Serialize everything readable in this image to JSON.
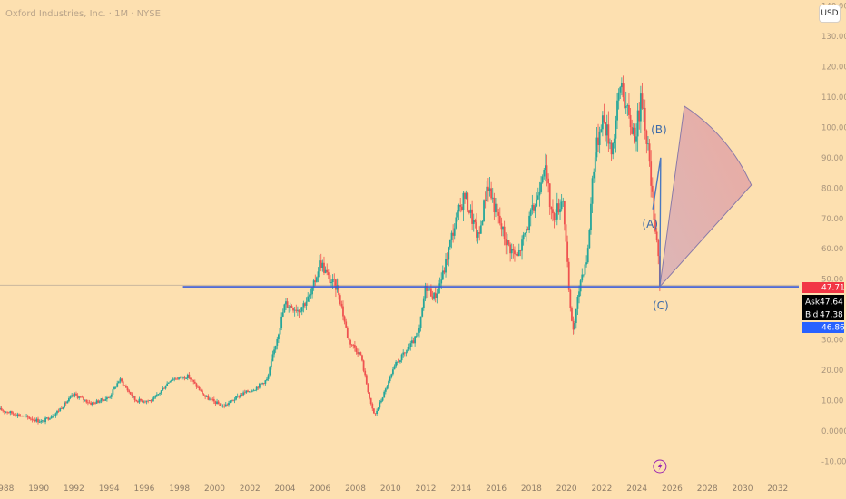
{
  "header": {
    "title": "Oxford Industries, Inc. · 1M · NYSE",
    "currency": "USD"
  },
  "colors": {
    "background": "#fde0b0",
    "up": "#26a69a",
    "down": "#ef5350",
    "support_line": "#3a5bd9",
    "fan_fill": "#e8a5a0",
    "fan_stroke": "#8a7aa8",
    "wave_label": "#3d6aa8"
  },
  "price_tags": {
    "last": {
      "value": "47.71",
      "color": "#f23645"
    },
    "ask": {
      "label": "Ask",
      "value": "47.64"
    },
    "bid": {
      "label": "Bid",
      "value": "47.38"
    },
    "low": {
      "value": "46.86",
      "color": "#2962ff"
    }
  },
  "icons": {
    "events": "lightning-icon"
  },
  "chart_data": {
    "type": "candlestick",
    "xlim": [
      1987.8,
      2033.2
    ],
    "ylim": [
      -13.5,
      142
    ],
    "y_ticks": [
      -10,
      0,
      10,
      20,
      30,
      40,
      50,
      60,
      70,
      80,
      90,
      100,
      110,
      120,
      130,
      140
    ],
    "y_tick_labels": [
      "-10.00",
      "0.0000",
      "10.00",
      "20.00",
      "30.00",
      "40.00",
      "50.00",
      "60.00",
      "70.00",
      "80.00",
      "90.00",
      "100.00",
      "110.00",
      "120.00",
      "130.00",
      "140.00"
    ],
    "x_ticks": [
      1988,
      1990,
      1992,
      1994,
      1996,
      1998,
      2000,
      2002,
      2004,
      2006,
      2008,
      2010,
      2012,
      2014,
      2016,
      2018,
      2020,
      2022,
      2024,
      2026,
      2028,
      2030,
      2032
    ],
    "x_tick_labels": [
      "1988",
      "1990",
      "1992",
      "1994",
      "1996",
      "1998",
      "2000",
      "2002",
      "2004",
      "2006",
      "2008",
      "2010",
      "2012",
      "2014",
      "2016",
      "2018",
      "2020",
      "2022",
      "2024",
      "2026",
      "2028",
      "2030",
      "2032"
    ],
    "price_path": [
      [
        1987.8,
        7
      ],
      [
        1989,
        5
      ],
      [
        1990.2,
        3
      ],
      [
        1991,
        6
      ],
      [
        1992,
        12
      ],
      [
        1993,
        9
      ],
      [
        1994,
        11
      ],
      [
        1994.6,
        17
      ],
      [
        1995.5,
        10
      ],
      [
        1996.5,
        10
      ],
      [
        1997.5,
        17
      ],
      [
        1998.5,
        18
      ],
      [
        1999.5,
        11
      ],
      [
        2000.5,
        8
      ],
      [
        2001.5,
        12
      ],
      [
        2002.3,
        14
      ],
      [
        2003,
        17
      ],
      [
        2004,
        42
      ],
      [
        2004.8,
        40
      ],
      [
        2005.5,
        45
      ],
      [
        2006,
        56
      ],
      [
        2006.5,
        50
      ],
      [
        2007,
        47
      ],
      [
        2007.6,
        30
      ],
      [
        2008.3,
        25
      ],
      [
        2008.9,
        8
      ],
      [
        2009.1,
        5
      ],
      [
        2009.6,
        12
      ],
      [
        2010.3,
        22
      ],
      [
        2011,
        27
      ],
      [
        2011.6,
        32
      ],
      [
        2012,
        48
      ],
      [
        2012.5,
        44
      ],
      [
        2013,
        52
      ],
      [
        2013.5,
        65
      ],
      [
        2014.2,
        78
      ],
      [
        2015,
        63
      ],
      [
        2015.5,
        82
      ],
      [
        2016,
        72
      ],
      [
        2016.6,
        62
      ],
      [
        2017.2,
        57
      ],
      [
        2017.8,
        68
      ],
      [
        2018.3,
        76
      ],
      [
        2018.7,
        89
      ],
      [
        2019.2,
        70
      ],
      [
        2019.8,
        77
      ],
      [
        2020.2,
        40
      ],
      [
        2020.4,
        33
      ],
      [
        2020.8,
        50
      ],
      [
        2021.2,
        58
      ],
      [
        2021.5,
        86
      ],
      [
        2022,
        104
      ],
      [
        2022.6,
        93
      ],
      [
        2023.1,
        116
      ],
      [
        2023.5,
        103
      ],
      [
        2023.9,
        98
      ],
      [
        2024.3,
        110
      ],
      [
        2024.6,
        95
      ],
      [
        2024.9,
        75
      ],
      [
        2025.2,
        60
      ],
      [
        2025.3,
        47.71
      ]
    ],
    "support_level": 47.5,
    "support_start_x": 1998.2,
    "crosshair_level": 48,
    "fan": {
      "apex": [
        2025.3,
        47.5
      ],
      "arc_start": [
        2026.7,
        107
      ],
      "arc_end": [
        2030.5,
        81
      ]
    },
    "wave_points": [
      [
        2024.9,
        73
      ],
      [
        2025.35,
        90
      ],
      [
        2025.3,
        47.5
      ]
    ],
    "wave_labels": [
      {
        "text": "(B)",
        "x": 2025.25,
        "y": 98
      },
      {
        "text": "(A)",
        "x": 2024.75,
        "y": 67
      },
      {
        "text": "(C)",
        "x": 2025.35,
        "y": 40
      }
    ]
  }
}
